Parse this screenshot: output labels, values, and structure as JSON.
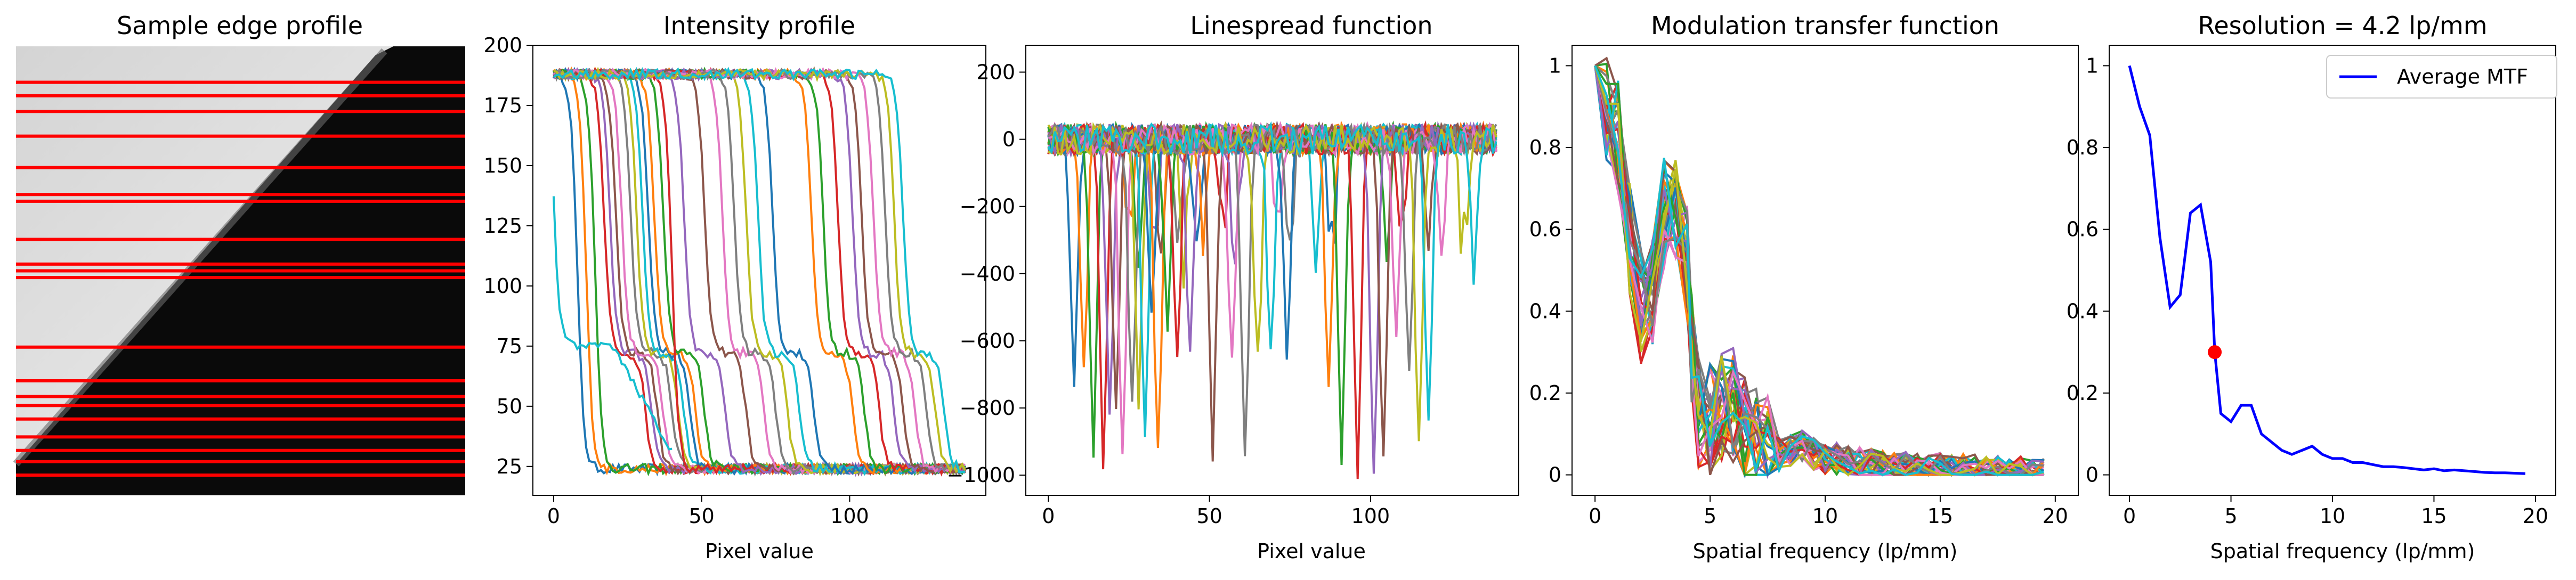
{
  "chart_data": [
    {
      "type": "image",
      "title": "Sample edge profile",
      "scan_rows": [
        0.08,
        0.11,
        0.145,
        0.2,
        0.27,
        0.33,
        0.345,
        0.43,
        0.485,
        0.5,
        0.515,
        0.67,
        0.745,
        0.78,
        0.8,
        0.83,
        0.87,
        0.9,
        0.925,
        0.955
      ],
      "colors": {
        "line": "#ff0000",
        "light": "#e6e6e6",
        "dark": "#0a0a0a"
      }
    },
    {
      "type": "line",
      "title": "Intensity profile",
      "xlabel": "Pixel value",
      "ylabel": "",
      "xlim": [
        -7,
        146
      ],
      "ylim": [
        13,
        200
      ],
      "xticks": [
        0,
        50,
        100
      ],
      "yticks": [
        25,
        50,
        75,
        100,
        125,
        150,
        175,
        200
      ],
      "high": 188,
      "low": 24,
      "shelf": 72,
      "transitions": [
        {
          "pos": 8,
          "shelf": 0
        },
        {
          "pos": 11,
          "shelf": 0
        },
        {
          "pos": 14,
          "shelf": 0
        },
        {
          "pos": 17,
          "shelf": 1
        },
        {
          "pos": 19,
          "shelf": 1
        },
        {
          "pos": 21,
          "shelf": 1
        },
        {
          "pos": 23,
          "shelf": 1
        },
        {
          "pos": 26,
          "shelf": 1
        },
        {
          "pos": 28,
          "shelf": 1
        },
        {
          "pos": 30,
          "shelf": 1
        },
        {
          "pos": 32,
          "shelf": 1
        },
        {
          "pos": 34,
          "shelf": 1
        },
        {
          "pos": 37,
          "shelf": 1
        },
        {
          "pos": 40,
          "shelf": 0
        },
        {
          "pos": 44,
          "shelf": 1
        },
        {
          "pos": 51,
          "shelf": 1
        },
        {
          "pos": 57,
          "shelf": 1
        },
        {
          "pos": 61,
          "shelf": 1
        },
        {
          "pos": 65,
          "shelf": 1
        },
        {
          "pos": 69,
          "shelf": 1
        },
        {
          "pos": 74,
          "shelf": 1
        },
        {
          "pos": 87,
          "shelf": 1
        },
        {
          "pos": 91,
          "shelf": 1
        },
        {
          "pos": 96,
          "shelf": 1
        },
        {
          "pos": 101,
          "shelf": 1
        },
        {
          "pos": 104,
          "shelf": 1
        },
        {
          "pos": 108,
          "shelf": 1
        },
        {
          "pos": 112,
          "shelf": 1
        },
        {
          "pos": 115,
          "shelf": 1
        },
        {
          "pos": 118,
          "shelf": 1
        }
      ]
    },
    {
      "type": "line",
      "title": "Linespread function",
      "xlabel": "Pixel value",
      "ylabel": "",
      "xlim": [
        -7,
        146
      ],
      "ylim": [
        -1060,
        280
      ],
      "xticks": [
        0,
        50,
        100
      ],
      "yticks": [
        -1000,
        -800,
        -600,
        -400,
        -200,
        0,
        200
      ]
    },
    {
      "type": "line",
      "title": "Modulation transfer function",
      "xlabel": "Spatial frequency (lp/mm)",
      "ylabel": "",
      "xlim": [
        -1,
        21
      ],
      "ylim": [
        -0.05,
        1.05
      ],
      "xticks": [
        0,
        5,
        10,
        15,
        20
      ],
      "yticks": [
        0.0,
        0.2,
        0.4,
        0.6,
        0.8,
        1.0
      ]
    },
    {
      "type": "line",
      "title": "Resolution = 4.2 lp/mm",
      "xlabel": "Spatial frequency (lp/mm)",
      "ylabel": "",
      "xlim": [
        -1,
        21
      ],
      "ylim": [
        -0.05,
        1.05
      ],
      "xticks": [
        0,
        5,
        10,
        15,
        20
      ],
      "yticks": [
        0.0,
        0.2,
        0.4,
        0.6,
        0.8,
        1.0
      ],
      "legend": {
        "label": "Average MTF",
        "placement": "upper right"
      },
      "series": [
        {
          "name": "Average MTF",
          "color": "#0000ff",
          "x": [
            0.0,
            0.5,
            1.0,
            1.5,
            2.0,
            2.5,
            3.0,
            3.5,
            4.0,
            4.2,
            4.5,
            5.0,
            5.5,
            6.0,
            6.5,
            7.0,
            7.5,
            8.0,
            8.5,
            9.0,
            9.5,
            10.0,
            10.5,
            11.0,
            11.5,
            12.0,
            12.5,
            13.0,
            13.5,
            14.0,
            14.5,
            15.0,
            15.5,
            16.0,
            16.5,
            17.0,
            17.5,
            18.0,
            18.5,
            19.0,
            19.5
          ],
          "y": [
            1.0,
            0.9,
            0.83,
            0.58,
            0.41,
            0.44,
            0.64,
            0.66,
            0.52,
            0.3,
            0.15,
            0.13,
            0.17,
            0.17,
            0.1,
            0.08,
            0.06,
            0.05,
            0.06,
            0.07,
            0.05,
            0.04,
            0.04,
            0.03,
            0.03,
            0.025,
            0.02,
            0.02,
            0.018,
            0.015,
            0.012,
            0.015,
            0.01,
            0.012,
            0.01,
            0.008,
            0.006,
            0.005,
            0.005,
            0.004,
            0.003
          ]
        }
      ],
      "marker": {
        "x": 4.2,
        "y": 0.3,
        "color": "#ff0000"
      }
    }
  ],
  "palette": [
    "#1f77b4",
    "#ff7f0e",
    "#2ca02c",
    "#d62728",
    "#9467bd",
    "#8c564b",
    "#e377c2",
    "#7f7f7f",
    "#bcbd22",
    "#17becf"
  ]
}
